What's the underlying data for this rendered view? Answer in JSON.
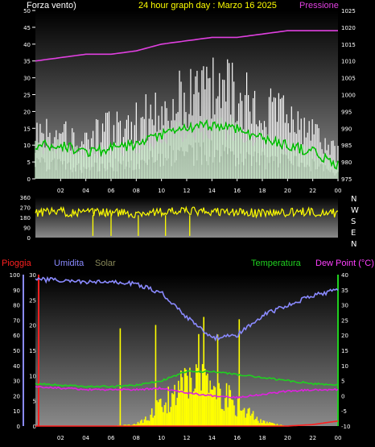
{
  "colors": {
    "background": "#000000",
    "wind": "#ffffff",
    "wind_avg": "#d8ffd8",
    "wind_gust_band": "#00c000",
    "pressure": "#e040e0",
    "direction": "#ffff00",
    "rain": "#ff2020",
    "humidity": "#8a8aff",
    "solar": "#ffff00",
    "temperature": "#20d020",
    "dewpoint": "#e020e0",
    "axis_red": "#ff2020",
    "axis_blue": "#8a8aff",
    "axis_green": "#20d020"
  },
  "header": {
    "wind_label": "Forza vento)",
    "title": "24 hour graph day : Marzo 16 2025",
    "pressure_label": "Pressione"
  },
  "lower_header": {
    "rain": "Pioggia",
    "humidity": "Umidita",
    "solar": "Solar",
    "temperature": "Temperatura",
    "dewpoint": "Dew Point (°C)"
  },
  "time_ticks": [
    "02",
    "04",
    "06",
    "08",
    "10",
    "12",
    "14",
    "16",
    "18",
    "20",
    "22",
    "00"
  ],
  "direction_letters": [
    "N",
    "W",
    "S",
    "E",
    "N"
  ],
  "chart_data": [
    {
      "type": "line",
      "title": "24 hour graph day : Marzo 16 2025",
      "ylabel_left": "Forza vento)",
      "ylabel_right": "Pressione",
      "ylim_left": [
        0,
        50
      ],
      "yticks_left": [
        "0",
        "5",
        "10",
        "15",
        "20",
        "25",
        "30",
        "35",
        "40",
        "45",
        "50"
      ],
      "ylim_right": [
        975,
        1025
      ],
      "yticks_right": [
        "975",
        "980",
        "985",
        "990",
        "995",
        "1000",
        "1005",
        "1010",
        "1015",
        "1020",
        "1025"
      ],
      "x": [
        "00",
        "02",
        "04",
        "06",
        "08",
        "10",
        "12",
        "14",
        "16",
        "18",
        "20",
        "22",
        "00"
      ],
      "series": [
        {
          "name": "Forza vento)",
          "axis": "left",
          "values": [
            14,
            15,
            12,
            16,
            18,
            22,
            27,
            30,
            26,
            22,
            19,
            15,
            8
          ]
        },
        {
          "axis": "left",
          "values": [
            10,
            10,
            8,
            9,
            10,
            13,
            15,
            16,
            15,
            12,
            10,
            8,
            4
          ]
        },
        {
          "axis": "left",
          "values": [
            6,
            5,
            4,
            5,
            6,
            8,
            9,
            10,
            9,
            7,
            6,
            5,
            2
          ]
        },
        {
          "name": "Pressione",
          "axis": "right",
          "values": [
            1010,
            1011,
            1012,
            1012,
            1013,
            1015,
            1016,
            1017,
            1017,
            1018,
            1019,
            1019,
            1019
          ]
        }
      ]
    },
    {
      "type": "scatter",
      "ylim": [
        0,
        360
      ],
      "yticks": [
        "0",
        "90",
        "180",
        "270",
        "360"
      ],
      "right_labels": [
        "N",
        "W",
        "S",
        "E",
        "N"
      ],
      "x": [
        "00",
        "02",
        "04",
        "06",
        "08",
        "10",
        "12",
        "14",
        "16",
        "18",
        "20",
        "22",
        "00"
      ],
      "values": [
        225,
        230,
        220,
        225,
        215,
        230,
        235,
        230,
        225,
        220,
        225,
        230,
        220
      ]
    },
    {
      "type": "line",
      "x": [
        "00",
        "02",
        "04",
        "06",
        "08",
        "10",
        "12",
        "14",
        "16",
        "18",
        "20",
        "22",
        "00"
      ],
      "axes": {
        "rain": {
          "ylim": [
            0,
            30
          ],
          "yticks": [
            "0",
            "5",
            "10",
            "15",
            "20",
            "25",
            "30"
          ]
        },
        "humidity": {
          "ylim": [
            0,
            100
          ],
          "yticks": [
            "0",
            "10",
            "20",
            "30",
            "40",
            "50",
            "60",
            "70",
            "80",
            "90",
            "100"
          ]
        },
        "temperature": {
          "ylim": [
            -10,
            40
          ],
          "yticks": [
            "-10",
            "-5",
            "0",
            "5",
            "10",
            "15",
            "20",
            "25",
            "30",
            "35",
            "40"
          ]
        }
      },
      "series": [
        {
          "name": "Umidita",
          "axis": "humidity",
          "values": [
            97,
            96,
            95,
            95,
            94,
            88,
            72,
            58,
            60,
            73,
            80,
            86,
            90
          ]
        },
        {
          "name": "Temperatura",
          "axis": "temperature",
          "values": [
            4,
            3.5,
            3,
            3,
            3.5,
            5,
            8,
            8,
            7,
            6,
            5,
            4,
            3.5
          ]
        },
        {
          "name": "Dew Point (°C)",
          "axis": "temperature",
          "values": [
            3,
            2.5,
            2,
            2,
            2,
            2.5,
            1,
            0,
            -0.5,
            0.5,
            1.5,
            2,
            2
          ]
        },
        {
          "name": "Solar",
          "axis": "rain",
          "values": [
            0,
            0,
            0,
            0,
            0.5,
            5,
            10,
            11,
            5,
            1,
            0,
            0,
            0
          ]
        },
        {
          "name": "Pioggia",
          "axis": "rain",
          "values": [
            0,
            0,
            0,
            0,
            0,
            0,
            0,
            0,
            0,
            0,
            0,
            0.3,
            1
          ]
        }
      ]
    }
  ]
}
